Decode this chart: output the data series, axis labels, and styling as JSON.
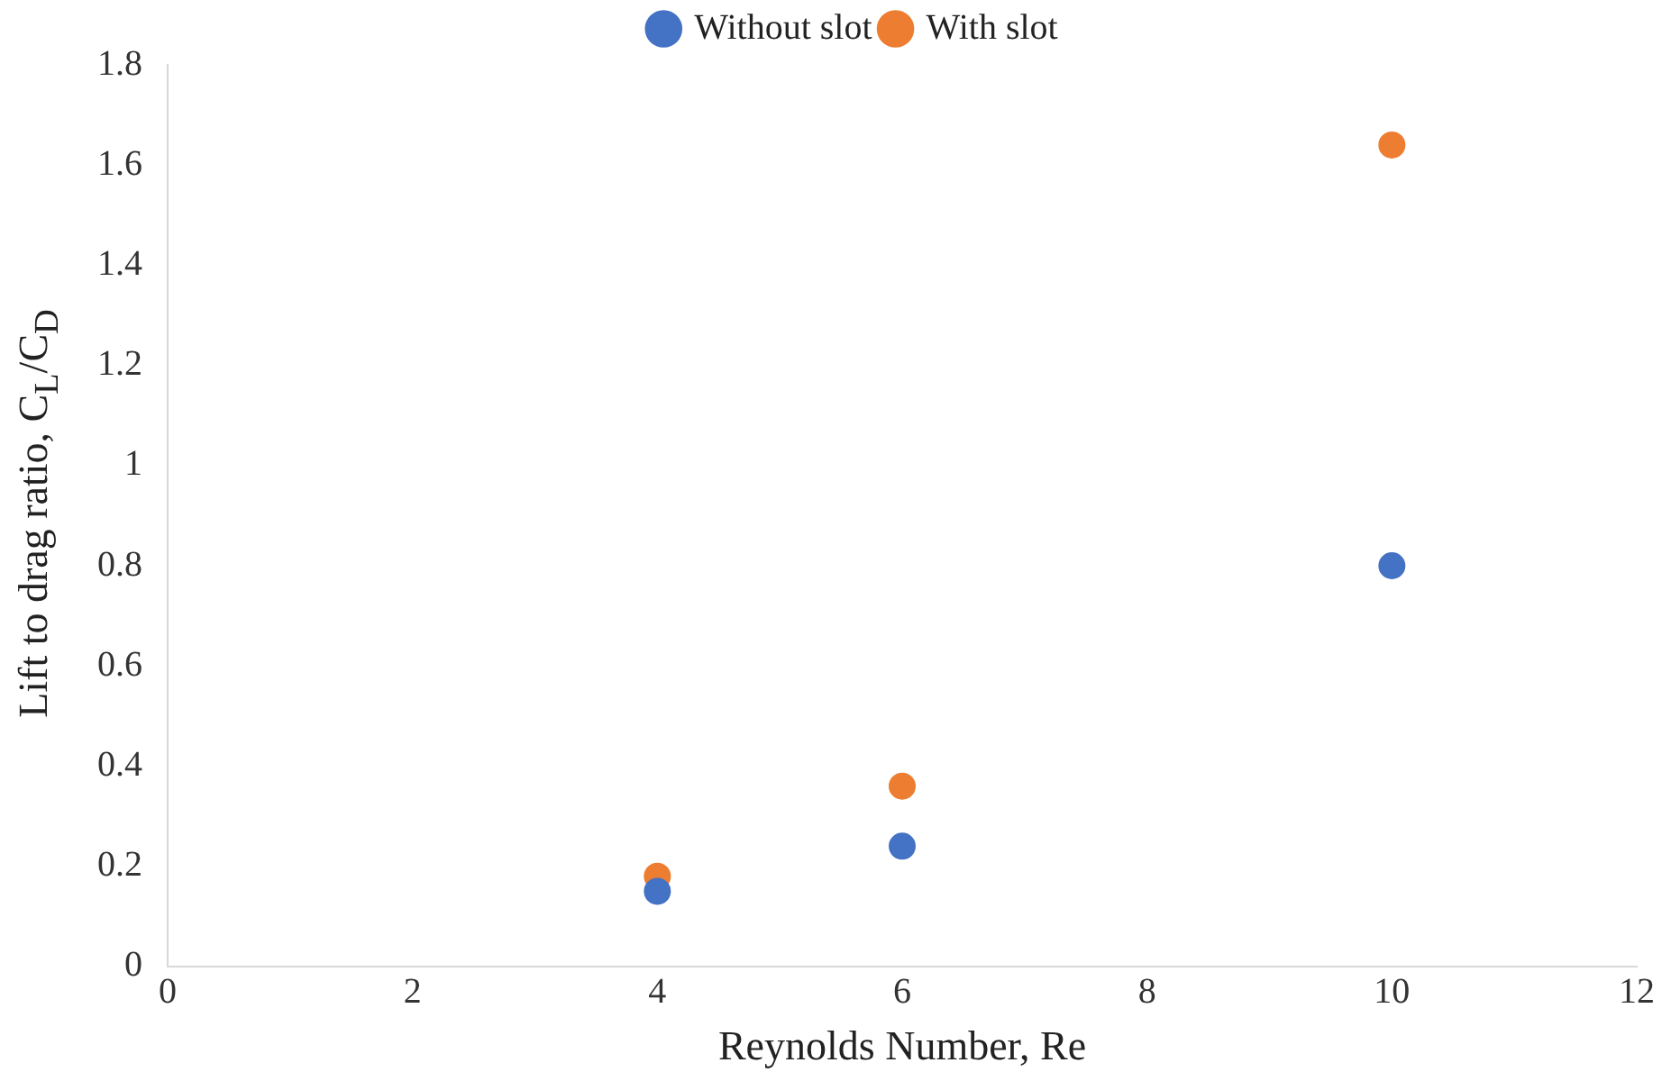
{
  "chart_data": {
    "type": "scatter",
    "xlabel": "Reynolds Number, Re",
    "ylabel": "Lift to drag ratio, C$_{L}$/C$_{D}$",
    "xlim": [
      0,
      12
    ],
    "xticks": [
      0,
      2,
      4,
      6,
      8,
      10,
      12
    ],
    "ylim": [
      0,
      1.8
    ],
    "yticks": [
      0,
      0.2,
      0.4,
      0.6,
      0.8,
      1,
      1.2,
      1.4,
      1.6,
      1.8
    ],
    "grid": false,
    "legend": "top",
    "marker": "circle",
    "series": [
      {
        "name": "Without slot",
        "color": "#4472c4",
        "x": [
          4,
          6,
          10
        ],
        "values": [
          0.15,
          0.24,
          0.8
        ]
      },
      {
        "name": "With slot",
        "color": "#ed7d31",
        "x": [
          4,
          6,
          10
        ],
        "values": [
          0.18,
          0.36,
          1.64
        ]
      }
    ]
  }
}
